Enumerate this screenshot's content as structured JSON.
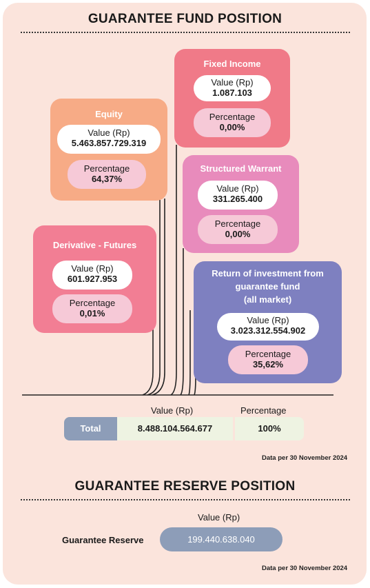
{
  "fund": {
    "title": "GUARANTEE FUND POSITION",
    "equity": {
      "title": "Equity",
      "value_label": "Value (Rp)",
      "value": "5.463.857.729.319",
      "pct_label": "Percentage",
      "pct": "64,37%"
    },
    "fixed_income": {
      "title": "Fixed Income",
      "value_label": "Value (Rp)",
      "value": "1.087.103",
      "pct_label": "Percentage",
      "pct": "0,00%"
    },
    "structured_warrant": {
      "title": "Structured Warrant",
      "value_label": "Value (Rp)",
      "value": "331.265.400",
      "pct_label": "Percentage",
      "pct": "0,00%"
    },
    "derivative": {
      "title": "Derivative - Futures",
      "value_label": "Value (Rp)",
      "value": "601.927.953",
      "pct_label": "Percentage",
      "pct": "0,01%"
    },
    "return_investment": {
      "title_line1": "Return of investment from",
      "title_line2": "guarantee fund",
      "title_line3": "(all market)",
      "value_label": "Value (Rp)",
      "value": "3.023.312.554.902",
      "pct_label": "Percentage",
      "pct": "35,62%"
    },
    "total": {
      "value_header": "Value (Rp)",
      "pct_header": "Percentage",
      "label": "Total",
      "value": "8.488.104.564.677",
      "pct": "100%"
    },
    "note": "Data per 30 November 2024"
  },
  "reserve": {
    "title": "GUARANTEE RESERVE POSITION",
    "value_header": "Value (Rp)",
    "label": "Guarantee Reserve",
    "value": "199.440.638.040",
    "note": "Data per 30 November 2024"
  },
  "colors": {
    "equity": "#f7ab86",
    "fixed_income": "#f07a88",
    "structured_warrant": "#e88bbc",
    "derivative": "#f27e94",
    "return_investment": "#7e80c0"
  }
}
